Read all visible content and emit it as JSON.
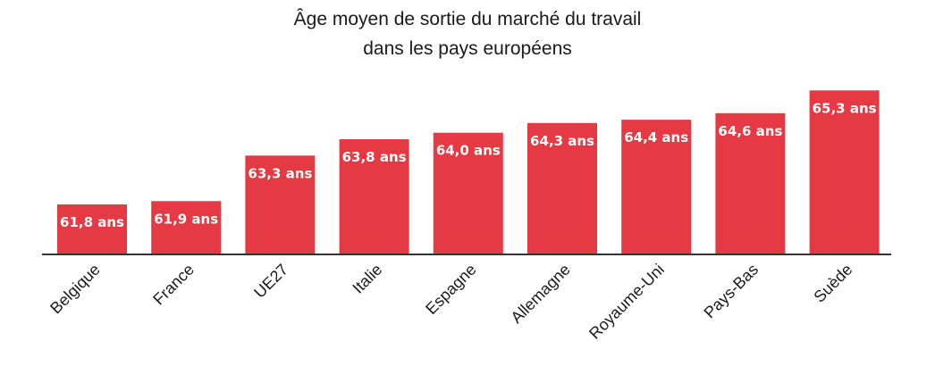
{
  "chart_data": {
    "type": "bar",
    "title_lines": [
      "Âge moyen de sortie du marché du travail",
      "dans les pays européens"
    ],
    "categories": [
      "Belgique",
      "France",
      "UE27",
      "Italie",
      "Espagne",
      "Allemagne",
      "Royaume-Uni",
      "Pays-Bas",
      "Suède"
    ],
    "values": [
      61.8,
      61.9,
      63.3,
      63.8,
      64.0,
      64.3,
      64.4,
      64.6,
      65.3
    ],
    "value_labels": [
      "61,8 ans",
      "61,9 ans",
      "63,3 ans",
      "63,8 ans",
      "64,0 ans",
      "64,3 ans",
      "64,4 ans",
      "64,6 ans",
      "65,3 ans"
    ],
    "bar_color": "#e53a43",
    "label_color": "#ffffff",
    "xlabel": "",
    "ylabel": "",
    "grid": false,
    "legend": "none"
  }
}
